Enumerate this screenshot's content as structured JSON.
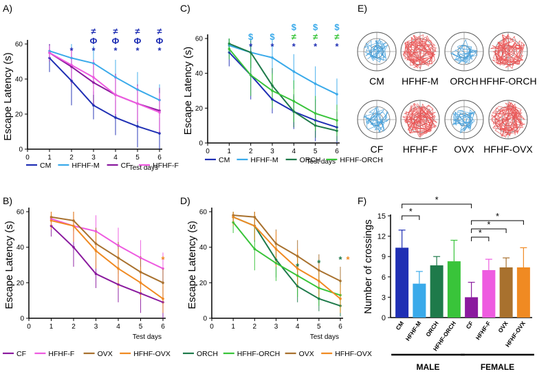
{
  "colors": {
    "CM": "#1f2fb4",
    "HFHF-M": "#3aaaea",
    "CF": "#8a1a9e",
    "HFHF-F": "#ee5be0",
    "ORCH": "#1e7a4a",
    "HFHF-ORCH": "#39c43a",
    "OVX": "#a8712e",
    "HFHF-OVX": "#f08a22",
    "star_blue": "#1f2fb4",
    "dollar": "#3aaaea",
    "star_green": "#1e7a4a",
    "star_orange": "#f08a22",
    "neq_green": "#39c43a"
  },
  "chart_data": [
    {
      "panel": "A)",
      "type": "line",
      "xlabel": "Test days",
      "ylabel": "Escape Latency (s)",
      "xlim": [
        0,
        6
      ],
      "ylim": [
        0,
        60
      ],
      "xticks": [
        0,
        1,
        2,
        3,
        4,
        5,
        6
      ],
      "yticks": [
        0,
        20,
        40,
        60
      ],
      "series": [
        {
          "name": "CM",
          "color_key": "CM",
          "x": [
            1,
            2,
            3,
            4,
            5,
            6
          ],
          "values": [
            52,
            39,
            25,
            18,
            13,
            9
          ],
          "err": [
            8,
            14,
            8,
            10,
            12,
            9
          ]
        },
        {
          "name": "HFHF-M",
          "color_key": "HFHF-M",
          "x": [
            1,
            2,
            3,
            4,
            5,
            6
          ],
          "values": [
            56,
            52,
            49,
            41,
            34,
            28
          ],
          "err": [
            5,
            9,
            10,
            10,
            10,
            9
          ]
        },
        {
          "name": "CF",
          "color_key": "CF",
          "x": [
            1,
            2,
            3,
            4,
            5,
            6
          ],
          "values": [
            55,
            47,
            38,
            31,
            26,
            22
          ],
          "err": [
            5,
            10,
            13,
            12,
            11,
            13
          ]
        },
        {
          "name": "HFHF-F",
          "color_key": "HFHF-F",
          "x": [
            1,
            2,
            3,
            4,
            5,
            6
          ],
          "values": [
            55,
            48,
            41,
            31,
            26,
            21
          ],
          "err": [
            4,
            9,
            10,
            11,
            10,
            11
          ]
        }
      ],
      "annotations": [
        {
          "x": 2,
          "lines": [
            "*"
          ],
          "colors": [
            "star_blue"
          ]
        },
        {
          "x": 3,
          "lines": [
            "≠",
            "Φ",
            "*"
          ],
          "colors": [
            "star_blue",
            "star_blue",
            "star_blue"
          ]
        },
        {
          "x": 4,
          "lines": [
            "≠",
            "Φ",
            "*"
          ],
          "colors": [
            "star_blue",
            "star_blue",
            "star_blue"
          ]
        },
        {
          "x": 5,
          "lines": [
            "≠",
            "Φ",
            "*"
          ],
          "colors": [
            "star_blue",
            "star_blue",
            "star_blue"
          ]
        },
        {
          "x": 6,
          "lines": [
            "≠",
            "Φ",
            "*"
          ],
          "colors": [
            "star_blue",
            "star_blue",
            "star_blue"
          ]
        }
      ],
      "legend": [
        "CM",
        "HFHF-M",
        "CF",
        "HFHF-F"
      ]
    },
    {
      "panel": "C)",
      "type": "line",
      "xlabel": "Test days",
      "ylabel": "Escape Latency (s)",
      "xlim": [
        0,
        6
      ],
      "ylim": [
        0,
        60
      ],
      "xticks": [
        0,
        1,
        2,
        3,
        4,
        5,
        6
      ],
      "yticks": [
        0,
        20,
        40,
        60
      ],
      "series": [
        {
          "name": "CM",
          "color_key": "CM",
          "x": [
            1,
            2,
            3,
            4,
            5,
            6
          ],
          "values": [
            52,
            39,
            25,
            18,
            13,
            9
          ],
          "err": [
            8,
            14,
            8,
            10,
            12,
            9
          ]
        },
        {
          "name": "HFHF-M",
          "color_key": "HFHF-M",
          "x": [
            1,
            2,
            3,
            4,
            5,
            6
          ],
          "values": [
            56,
            52,
            49,
            41,
            34,
            28
          ],
          "err": [
            5,
            9,
            10,
            10,
            10,
            9
          ]
        },
        {
          "name": "ORCH",
          "color_key": "ORCH",
          "x": [
            1,
            2,
            3,
            4,
            5,
            6
          ],
          "values": [
            57,
            52,
            33,
            18,
            10,
            7
          ],
          "err": [
            4,
            9,
            10,
            9,
            7,
            6
          ]
        },
        {
          "name": "HFHF-ORCH",
          "color_key": "HFHF-ORCH",
          "x": [
            1,
            2,
            3,
            4,
            5,
            6
          ],
          "values": [
            54,
            39,
            30,
            24,
            17,
            13
          ],
          "err": [
            6,
            12,
            10,
            12,
            10,
            9
          ]
        }
      ],
      "annotations": [
        {
          "x": 2,
          "lines": [
            "$",
            "*"
          ],
          "colors": [
            "dollar",
            "star_blue"
          ]
        },
        {
          "x": 3,
          "lines": [
            "$",
            "*"
          ],
          "colors": [
            "dollar",
            "star_blue"
          ]
        },
        {
          "x": 4,
          "lines": [
            "$",
            "≠",
            "*"
          ],
          "colors": [
            "dollar",
            "neq_green",
            "star_blue"
          ]
        },
        {
          "x": 5,
          "lines": [
            "$",
            "≠",
            "*"
          ],
          "colors": [
            "dollar",
            "neq_green",
            "star_blue"
          ]
        },
        {
          "x": 6,
          "lines": [
            "$",
            "≠",
            "*"
          ],
          "colors": [
            "dollar",
            "neq_green",
            "star_blue"
          ]
        }
      ],
      "legend": [
        "CM",
        "HFHF-M",
        "ORCH",
        "HFHF-ORCH"
      ]
    },
    {
      "panel": "B)",
      "type": "line",
      "xlabel": "Test days",
      "ylabel": "Escape Latency (s)",
      "xlim": [
        0,
        6
      ],
      "ylim": [
        0,
        60
      ],
      "xticks": [
        0,
        1,
        2,
        3,
        4,
        5,
        6
      ],
      "yticks": [
        0,
        20,
        40,
        60
      ],
      "series": [
        {
          "name": "CF",
          "color_key": "CF",
          "x": [
            1,
            2,
            3,
            4,
            5,
            6
          ],
          "values": [
            52,
            40,
            25,
            19,
            14,
            9
          ],
          "err": [
            6,
            11,
            8,
            10,
            11,
            9
          ]
        },
        {
          "name": "HFHF-F",
          "color_key": "HFHF-F",
          "x": [
            1,
            2,
            3,
            4,
            5,
            6
          ],
          "values": [
            56,
            52,
            49,
            41,
            34,
            28
          ],
          "err": [
            4,
            8,
            9,
            10,
            10,
            9
          ]
        },
        {
          "name": "OVX",
          "color_key": "OVX",
          "x": [
            1,
            2,
            3,
            4,
            5,
            6
          ],
          "values": [
            57,
            55,
            42,
            34,
            26,
            20
          ],
          "err": [
            3,
            6,
            9,
            9,
            9,
            8
          ]
        },
        {
          "name": "HFHF-OVX",
          "color_key": "HFHF-OVX",
          "x": [
            1,
            2,
            3,
            4,
            5,
            6
          ],
          "values": [
            55,
            52,
            38,
            28,
            20,
            11
          ],
          "err": [
            5,
            9,
            10,
            11,
            9,
            8
          ]
        }
      ],
      "annotations": [
        {
          "x": 6,
          "lines": [
            "*"
          ],
          "colors": [
            "star_orange"
          ]
        }
      ],
      "legend": [
        "CF",
        "HFHF-F",
        "OVX",
        "HFHF-OVX"
      ]
    },
    {
      "panel": "D)",
      "type": "line",
      "xlabel": "Test days",
      "ylabel": "Escape Latency (s)",
      "xlim": [
        0,
        6
      ],
      "ylim": [
        0,
        60
      ],
      "xticks": [
        0,
        1,
        2,
        3,
        4,
        5,
        6
      ],
      "yticks": [
        0,
        20,
        40,
        60
      ],
      "series": [
        {
          "name": "ORCH",
          "color_key": "ORCH",
          "x": [
            1,
            2,
            3,
            4,
            5,
            6
          ],
          "values": [
            57,
            52,
            33,
            18,
            11,
            7
          ],
          "err": [
            4,
            9,
            10,
            9,
            7,
            6
          ]
        },
        {
          "name": "HFHF-ORCH",
          "color_key": "HFHF-ORCH",
          "x": [
            1,
            2,
            3,
            4,
            5,
            6
          ],
          "values": [
            54,
            39,
            31,
            24,
            17,
            13
          ],
          "err": [
            6,
            12,
            10,
            12,
            10,
            9
          ]
        },
        {
          "name": "OVX",
          "color_key": "OVX",
          "x": [
            1,
            2,
            3,
            4,
            5,
            6
          ],
          "values": [
            58,
            57,
            42,
            35,
            27,
            21
          ],
          "err": [
            3,
            5,
            8,
            9,
            9,
            8
          ]
        },
        {
          "name": "HFHF-OVX",
          "color_key": "HFHF-OVX",
          "x": [
            1,
            2,
            3,
            4,
            5,
            6
          ],
          "values": [
            57,
            52,
            39,
            28,
            21,
            11
          ],
          "err": [
            5,
            8,
            10,
            11,
            9,
            8
          ]
        }
      ],
      "annotations": [
        {
          "x": 4,
          "lines": [
            "*"
          ],
          "colors": [
            "star_green"
          ]
        },
        {
          "x": 5,
          "lines": [
            "*"
          ],
          "colors": [
            "star_green"
          ]
        },
        {
          "x": 6,
          "lines": [
            "*"
          ],
          "colors": [
            "star_green"
          ],
          "extra": {
            "text": "*",
            "color": "star_orange"
          }
        }
      ],
      "legend": [
        "ORCH",
        "HFHF-ORCH",
        "OVX",
        "HFHF-OVX"
      ]
    },
    {
      "panel": "F)",
      "type": "bar",
      "ylabel": "Number of crossings",
      "ylim": [
        0,
        15
      ],
      "yticks": [
        0,
        3,
        6,
        9,
        12,
        15
      ],
      "categories": [
        "CM",
        "HFHF-M",
        "ORCH",
        "HFHF-ORCH",
        "CF",
        "HFHF-F",
        "OVX",
        "HFHF-OVX"
      ],
      "values": [
        10.3,
        5.0,
        7.7,
        8.3,
        3.0,
        7.0,
        7.4,
        7.4
      ],
      "err": [
        2.6,
        1.8,
        1.3,
        3.1,
        2.2,
        1.6,
        1.4,
        2.9
      ],
      "color_keys": [
        "CM",
        "HFHF-M",
        "ORCH",
        "HFHF-ORCH",
        "CF",
        "HFHF-F",
        "OVX",
        "HFHF-OVX"
      ],
      "groups": [
        {
          "label": "MALE",
          "from": 0,
          "to": 3
        },
        {
          "label": "FEMALE",
          "from": 4,
          "to": 7
        }
      ],
      "significance": [
        {
          "from": 0,
          "to": 1,
          "text": "*"
        },
        {
          "from": 0,
          "to": 4,
          "text": "*"
        },
        {
          "from": 4,
          "to": 5,
          "text": "*"
        },
        {
          "from": 4,
          "to": 6,
          "text": "*"
        },
        {
          "from": 4,
          "to": 7,
          "text": "*"
        }
      ]
    }
  ],
  "panel_e": {
    "label": "E)",
    "mazes": [
      {
        "label": "CM",
        "color_key": "HFHF-M"
      },
      {
        "label": "HFHF-M",
        "color_key": "CF_red"
      },
      {
        "label": "ORCH",
        "color_key": "HFHF-M"
      },
      {
        "label": "HFHF-ORCH",
        "color_key": "CF_red"
      },
      {
        "label": "CF",
        "color_key": "HFHF-M"
      },
      {
        "label": "HFHF-F",
        "color_key": "CF_red"
      },
      {
        "label": "OVX",
        "color_key": "HFHF-M"
      },
      {
        "label": "HFHF-OVX",
        "color_key": "CF_red"
      }
    ],
    "path_colors": {
      "HFHF-M": "#3a9ad9",
      "CF_red": "#e84a4a"
    }
  }
}
